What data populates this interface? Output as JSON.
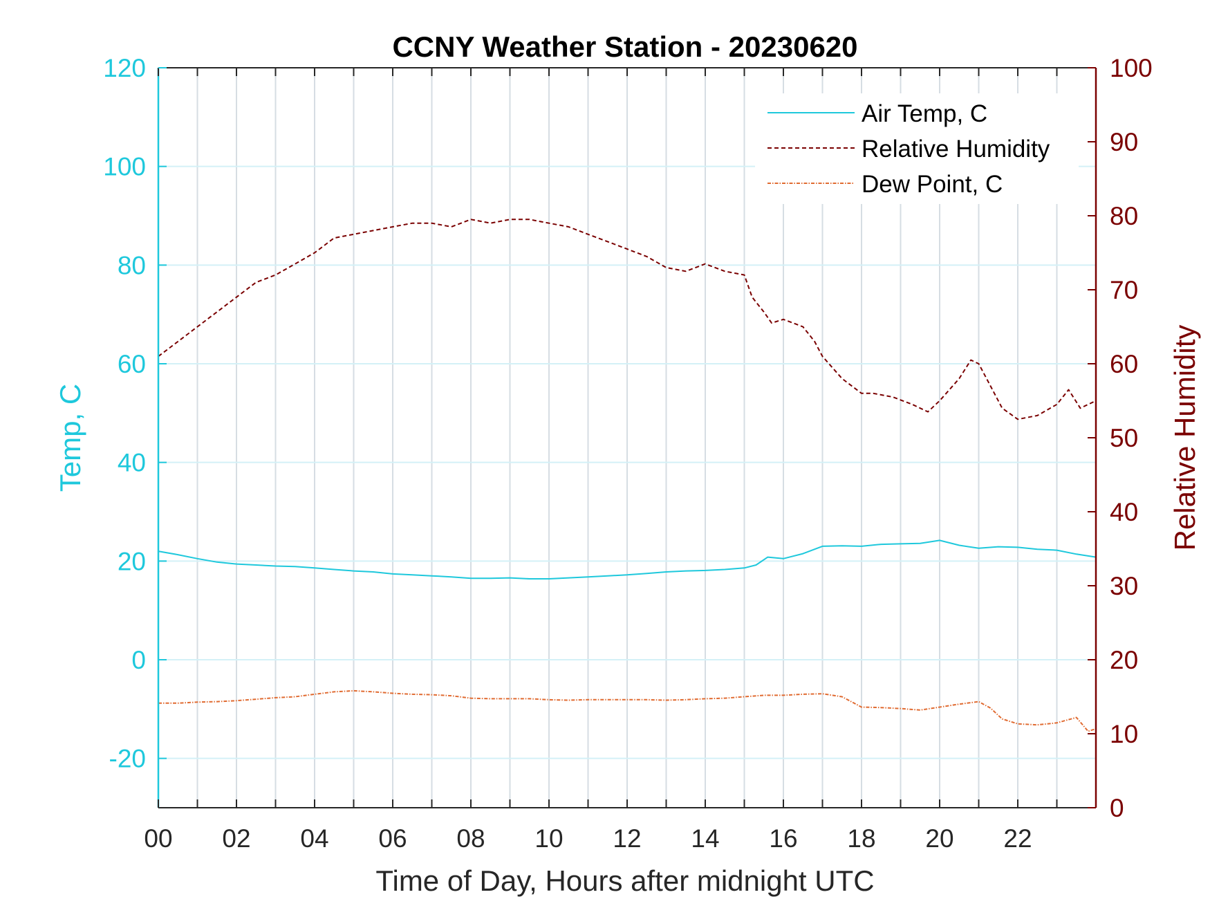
{
  "chart_data": {
    "type": "line",
    "title": "CCNY Weather Station - 20230620",
    "xlabel": "Time of Day, Hours after midnight UTC",
    "ylabel_left": "Temp, C",
    "ylabel_right": "Relative Humidity",
    "xlim": [
      0,
      24
    ],
    "ylim_left": [
      -30,
      120
    ],
    "ylim_right": [
      0,
      100
    ],
    "x_ticks": [
      0,
      2,
      4,
      6,
      8,
      10,
      12,
      14,
      16,
      18,
      20,
      22
    ],
    "x_tick_labels": [
      "00",
      "02",
      "04",
      "06",
      "08",
      "10",
      "12",
      "14",
      "16",
      "18",
      "20",
      "22"
    ],
    "y_left_ticks": [
      -20,
      0,
      20,
      40,
      60,
      80,
      100,
      120
    ],
    "y_right_ticks": [
      0,
      10,
      20,
      30,
      40,
      50,
      60,
      70,
      80,
      90,
      100
    ],
    "grid": true,
    "legend_position": "top-right",
    "colors": {
      "left_axis": "#1ec8dc",
      "right_axis": "#7a0000",
      "air_temp": "#1ec8dc",
      "humidity": "#7a0000",
      "dew_point": "#e06a30"
    },
    "series": [
      {
        "name": "Air Temp, C",
        "axis": "left",
        "style": "solid",
        "x": [
          0,
          0.5,
          1,
          1.5,
          2,
          2.5,
          3,
          3.5,
          4,
          4.5,
          5,
          5.5,
          6,
          6.5,
          7,
          7.5,
          8,
          8.5,
          9,
          9.5,
          10,
          10.5,
          11,
          11.5,
          12,
          12.5,
          13,
          13.5,
          14,
          14.5,
          15,
          15.3,
          15.6,
          16,
          16.5,
          17,
          17.5,
          18,
          18.5,
          19,
          19.5,
          20,
          20.5,
          21,
          21.5,
          22,
          22.5,
          23,
          23.5,
          24
        ],
        "values": [
          22,
          21.3,
          20.5,
          19.8,
          19.4,
          19.2,
          19,
          18.9,
          18.6,
          18.3,
          18,
          17.8,
          17.4,
          17.2,
          17,
          16.8,
          16.5,
          16.5,
          16.6,
          16.4,
          16.4,
          16.6,
          16.8,
          17,
          17.2,
          17.5,
          17.8,
          18,
          18.1,
          18.3,
          18.6,
          19.2,
          20.8,
          20.5,
          21.5,
          23,
          23.1,
          23,
          23.4,
          23.5,
          23.6,
          24.2,
          23.2,
          22.6,
          22.9,
          22.8,
          22.4,
          22.2,
          21.4,
          20.8
        ]
      },
      {
        "name": "Relative Humidity",
        "axis": "right",
        "style": "dashed",
        "x": [
          0,
          0.5,
          1,
          1.5,
          2,
          2.5,
          3,
          3.5,
          4,
          4.5,
          5,
          5.5,
          6,
          6.5,
          7,
          7.5,
          8,
          8.5,
          9,
          9.5,
          10,
          10.5,
          11,
          11.5,
          12,
          12.5,
          13,
          13.5,
          14,
          14.5,
          15,
          15.2,
          15.5,
          15.7,
          16,
          16.5,
          16.8,
          17,
          17.5,
          18,
          18.3,
          18.8,
          19.3,
          19.7,
          20,
          20.5,
          20.8,
          21,
          21.3,
          21.6,
          22,
          22.5,
          23,
          23.3,
          23.6,
          24
        ],
        "values": [
          61,
          63,
          65,
          67,
          69,
          71,
          72,
          73.5,
          75,
          77,
          77.5,
          78,
          78.5,
          79,
          79,
          78.5,
          79.5,
          79,
          79.5,
          79.5,
          79,
          78.5,
          77.5,
          76.5,
          75.5,
          74.5,
          73,
          72.5,
          73.5,
          72.5,
          72,
          69,
          67,
          65.5,
          66,
          65,
          63,
          61,
          58,
          56,
          56,
          55.5,
          54.5,
          53.5,
          55,
          58,
          60.5,
          60,
          57,
          54,
          52.5,
          53,
          54.5,
          56.5,
          54,
          55
        ]
      },
      {
        "name": "Dew Point, C",
        "axis": "left",
        "style": "dashdot",
        "x": [
          0,
          0.5,
          1,
          1.5,
          2,
          2.5,
          3,
          3.5,
          4,
          4.5,
          5,
          5.5,
          6,
          6.5,
          7,
          7.5,
          8,
          8.5,
          9,
          9.5,
          10,
          10.5,
          11,
          11.5,
          12,
          12.5,
          13,
          13.5,
          14,
          14.5,
          15,
          15.5,
          16,
          16.5,
          17,
          17.5,
          18,
          18.5,
          19,
          19.5,
          20,
          20.5,
          21,
          21.3,
          21.6,
          22,
          22.5,
          23,
          23.5,
          23.8,
          24
        ],
        "values": [
          -8.8,
          -8.8,
          -8.6,
          -8.5,
          -8.3,
          -8,
          -7.7,
          -7.5,
          -7,
          -6.5,
          -6.3,
          -6.5,
          -6.8,
          -7,
          -7.1,
          -7.3,
          -7.8,
          -7.9,
          -7.9,
          -7.9,
          -8.1,
          -8.2,
          -8.1,
          -8.1,
          -8.1,
          -8.1,
          -8.2,
          -8.1,
          -7.9,
          -7.8,
          -7.5,
          -7.2,
          -7.2,
          -7,
          -6.9,
          -7.5,
          -9.6,
          -9.7,
          -9.9,
          -10.2,
          -9.6,
          -9,
          -8.5,
          -9.8,
          -12,
          -13,
          -13.2,
          -12.8,
          -11.7,
          -14.5,
          -14
        ]
      }
    ]
  }
}
